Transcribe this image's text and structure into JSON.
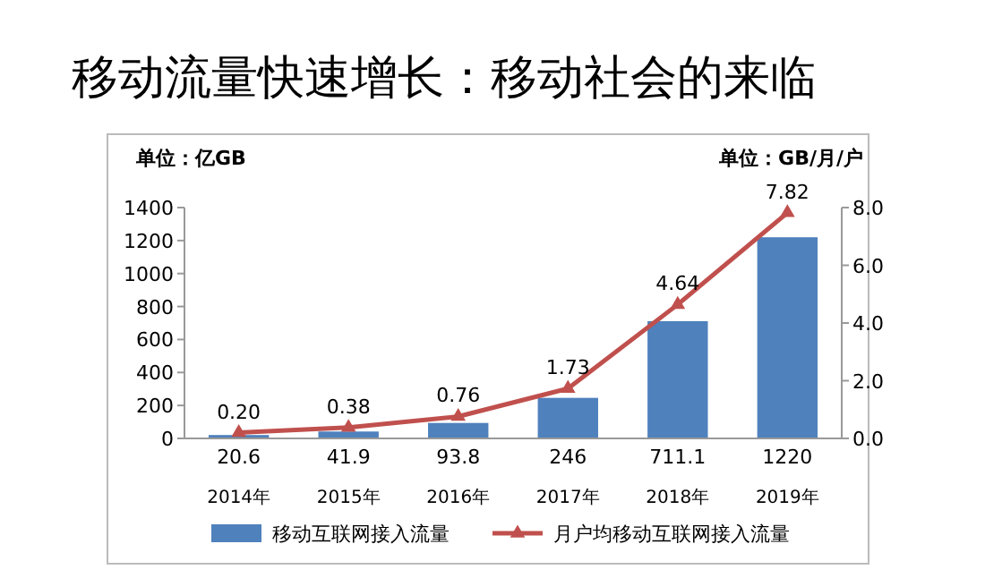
{
  "chart_data": {
    "type": "bar",
    "title": "移动流量快速增长：移动社会的来临",
    "ylabel": "单位：亿GB",
    "y2label": "单位：GB/月/户",
    "categories": [
      "2014年",
      "2015年",
      "2016年",
      "2017年",
      "2018年",
      "2019年"
    ],
    "series": [
      {
        "name": "移动互联网接入流量",
        "color": "#4f81bd",
        "values": [
          20.6,
          41.9,
          93.8,
          246,
          711.1,
          1220
        ],
        "value_labels": [
          "20.6",
          "41.9",
          "93.8",
          "246",
          "711.1",
          "1220"
        ]
      },
      {
        "name": "月户均移动互联网接入流量",
        "type": "line",
        "axis": "y2",
        "color": "#c0504d",
        "marker": "triangle",
        "values": [
          0.2,
          0.38,
          0.76,
          1.73,
          4.64,
          7.82
        ],
        "value_labels": [
          "0.20",
          "0.38",
          "0.76",
          "1.73",
          "4.64",
          "7.82"
        ]
      }
    ],
    "ylim": [
      0,
      1400
    ],
    "yticks": [
      0,
      200,
      400,
      600,
      800,
      1000,
      1200,
      1400
    ],
    "y2lim": [
      0,
      8
    ],
    "y2ticks": [
      {
        "value": 0,
        "label": "0.0"
      },
      {
        "value": 2,
        "label": "2.0"
      },
      {
        "value": 4,
        "label": "4.0"
      },
      {
        "value": 6,
        "label": "6.0"
      },
      {
        "value": 8,
        "label": "8.0"
      }
    ],
    "legend": "bottom"
  }
}
